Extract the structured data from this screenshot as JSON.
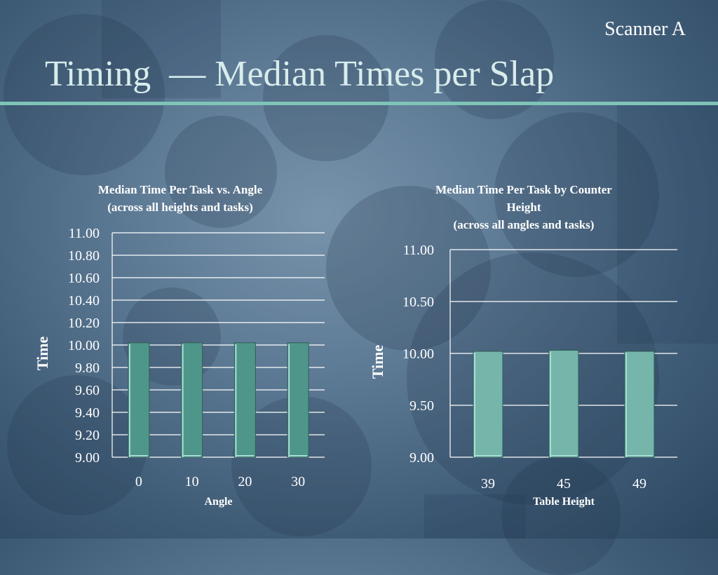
{
  "slide": {
    "corner_label": "Scanner A",
    "title": "Timing  — Median Times per Slap"
  },
  "colors": {
    "title": "#d8ecec",
    "rule": "#7fc4b8",
    "gridline": "#ffffff",
    "bar_fill_left": "#4f968a",
    "bar_fill_right": "#76b5aa",
    "bar_edge": "#a8ded3"
  },
  "chart_data": [
    {
      "type": "bar",
      "title_lines": [
        "Median Time Per Task vs. Angle",
        "(across all heights and tasks)"
      ],
      "xlabel": "Angle",
      "ylabel": "Time",
      "categories": [
        "0",
        "10",
        "20",
        "30"
      ],
      "values": [
        10.02,
        10.02,
        10.02,
        10.02
      ],
      "ylim": [
        9.0,
        11.0
      ],
      "yticks": [
        "9.00",
        "9.20",
        "9.40",
        "9.60",
        "9.80",
        "10.00",
        "10.20",
        "10.40",
        "10.60",
        "10.80",
        "11.00"
      ],
      "grid": true
    },
    {
      "type": "bar",
      "title_lines": [
        "Median Time Per Task by Counter",
        "Height",
        "(across all angles and tasks)"
      ],
      "xlabel": "Table Height",
      "ylabel": "Time",
      "categories": [
        "39",
        "45",
        "49"
      ],
      "values": [
        10.02,
        10.03,
        10.02
      ],
      "ylim": [
        9.0,
        11.0
      ],
      "yticks": [
        "9.00",
        "9.50",
        "10.00",
        "10.50",
        "11.00"
      ],
      "grid": true
    }
  ]
}
